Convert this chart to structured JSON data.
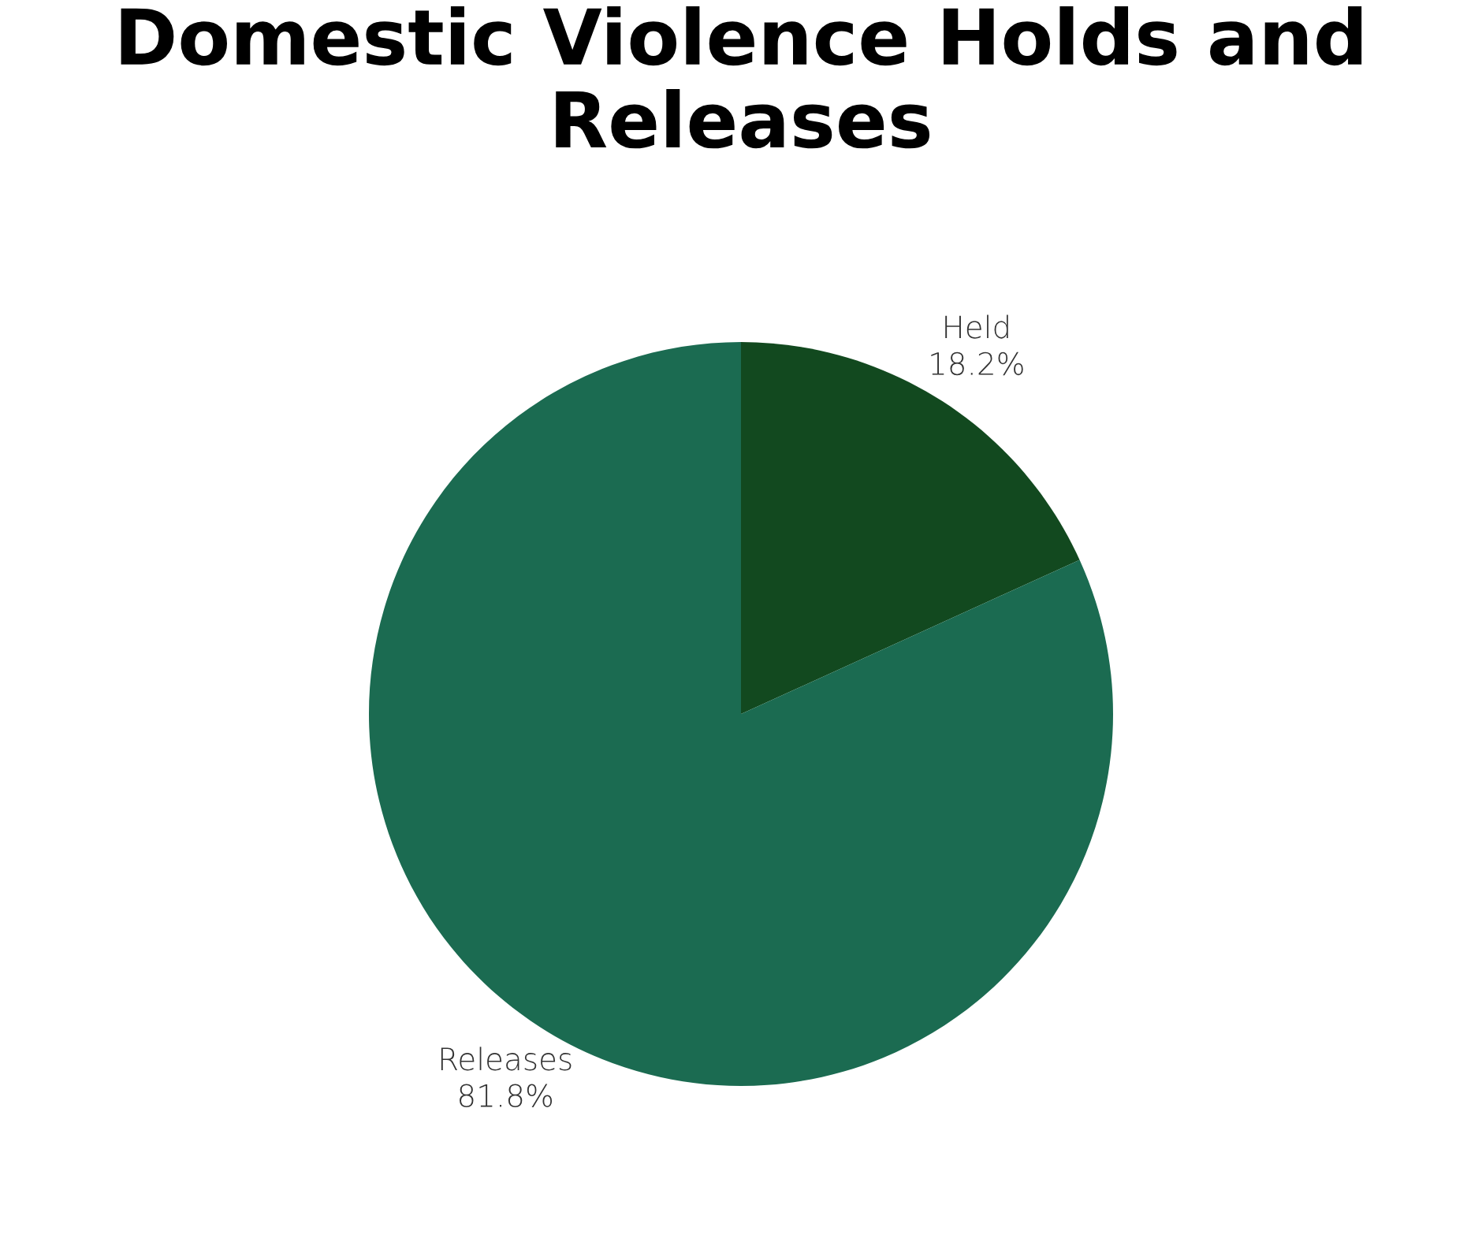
{
  "chart_data": {
    "type": "pie",
    "title": "Domestic Violence Holds and Releases",
    "categories": [
      "Held",
      "Releases"
    ],
    "values": [
      18.2,
      81.8
    ],
    "value_labels": [
      "18.2%",
      "81.8%"
    ],
    "colors": [
      "#12491f",
      "#1b6b51"
    ]
  }
}
